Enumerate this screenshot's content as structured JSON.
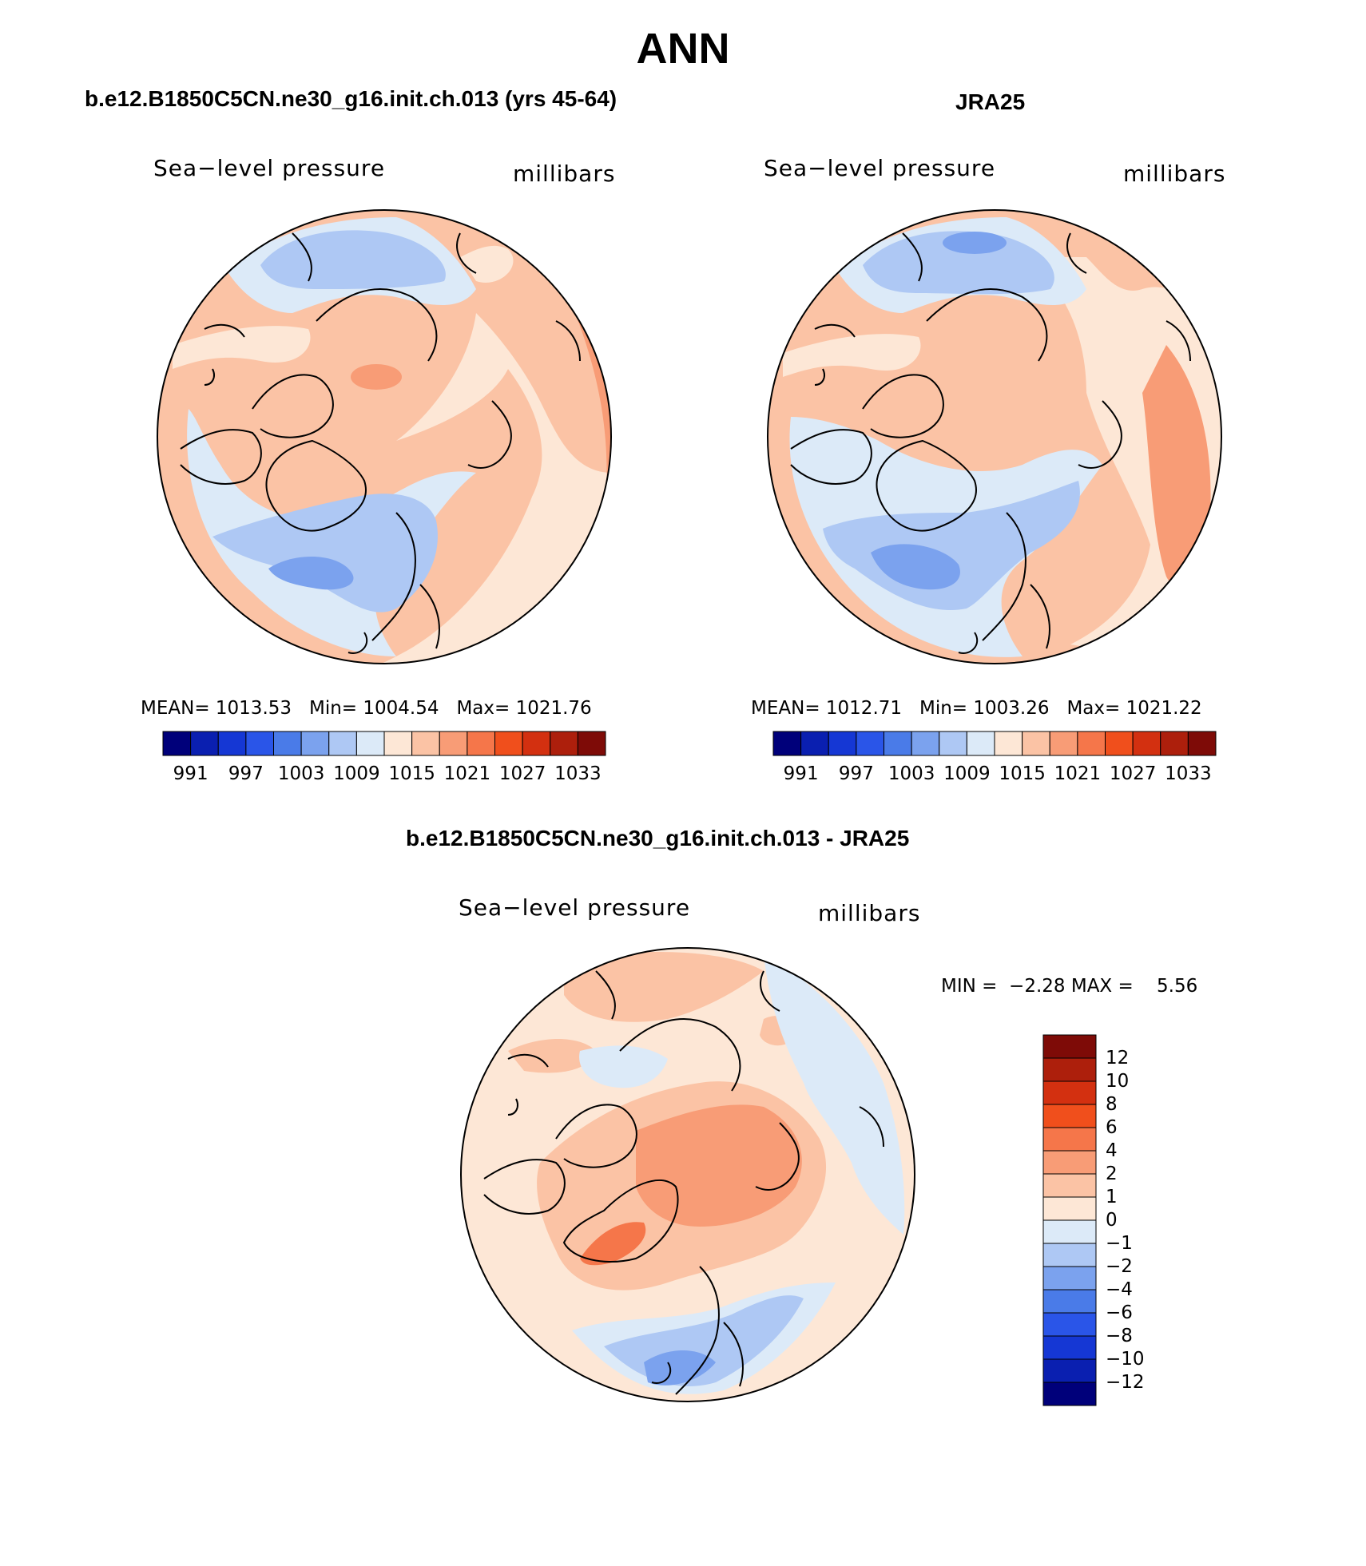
{
  "figure": {
    "title": "ANN"
  },
  "panels": {
    "model": {
      "case_title": "b.e12.B1850C5CN.ne30_g16.init.ch.013 (yrs 45-64)",
      "variable": "Sea−level pressure",
      "units": "millibars",
      "mean_label": "MEAN=",
      "mean_value": "1013.53",
      "min_label": "Min=",
      "min_value": "1004.54",
      "max_label": "Max=",
      "max_value": "1021.76",
      "colorbar_ticks": [
        "991",
        "997",
        "1003",
        "1009",
        "1015",
        "1021",
        "1027",
        "1033"
      ]
    },
    "obs": {
      "case_title": "JRA25",
      "variable": "Sea−level pressure",
      "units": "millibars",
      "mean_label": "MEAN=",
      "mean_value": "1012.71",
      "min_label": "Min=",
      "min_value": "1003.26",
      "max_label": "Max=",
      "max_value": "1021.22",
      "colorbar_ticks": [
        "991",
        "997",
        "1003",
        "1009",
        "1015",
        "1021",
        "1027",
        "1033"
      ]
    },
    "diff": {
      "case_title": "b.e12.B1850C5CN.ne30_g16.init.ch.013 - JRA25",
      "variable": "Sea−level pressure",
      "units": "millibars",
      "min_label": "MIN =",
      "min_value": "−2.28",
      "max_label": "MAX =",
      "max_value": "5.56",
      "colorbar_ticks": [
        "12",
        "10",
        "8",
        "6",
        "4",
        "2",
        "1",
        "0",
        "−1",
        "−2",
        "−4",
        "−6",
        "−8",
        "−10",
        "−12"
      ]
    }
  },
  "colors": {
    "abs_scale": [
      "#00007a",
      "#0a1fb0",
      "#1537d4",
      "#2a55e8",
      "#4a7be8",
      "#7ba2ee",
      "#aec8f4",
      "#dceaf8",
      "#fde7d6",
      "#fbc3a5",
      "#f89c76",
      "#f5764a",
      "#f04f1c",
      "#d33010",
      "#ad1f0c",
      "#7e0b07"
    ],
    "diff_scale": [
      "#7e0b07",
      "#ad1f0c",
      "#d33010",
      "#f04f1c",
      "#f5764a",
      "#f89c76",
      "#fbc3a5",
      "#fde7d6",
      "#dceaf8",
      "#aec8f4",
      "#7ba2ee",
      "#4a7be8",
      "#2a55e8",
      "#1537d4",
      "#0a1fb0",
      "#00007a"
    ],
    "coastline": "#000000"
  }
}
